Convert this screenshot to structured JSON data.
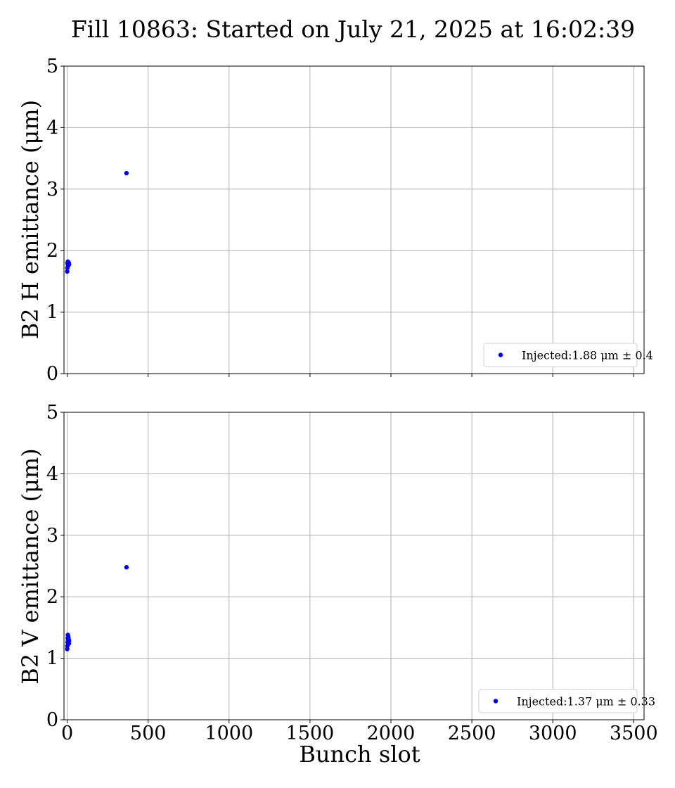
{
  "title": "Fill 10863: Started on July 21, 2025 at 16:02:39",
  "colors": {
    "marker": "#0000ee",
    "grid": "#b0b0b0"
  },
  "chart_data": [
    {
      "type": "scatter",
      "ylabel": "B2 H emittance (μm)",
      "xlabel": "",
      "xlim": [
        -20,
        3564
      ],
      "ylim": [
        0,
        5
      ],
      "xticks": [
        0,
        500,
        1000,
        1500,
        2000,
        2500,
        3000,
        3500
      ],
      "yticks": [
        0,
        1,
        2,
        3,
        4,
        5
      ],
      "show_xtick_labels": false,
      "grid": true,
      "legend_position": "bottom-right",
      "series": [
        {
          "name": "Injected:1.88 μm ± 0.4",
          "points": [
            {
              "x": 0,
              "y": 1.66
            },
            {
              "x": 1,
              "y": 1.72
            },
            {
              "x": 2,
              "y": 1.79
            },
            {
              "x": 3,
              "y": 1.8
            },
            {
              "x": 4,
              "y": 1.82
            },
            {
              "x": 5,
              "y": 1.78
            },
            {
              "x": 6,
              "y": 1.76
            },
            {
              "x": 7,
              "y": 1.81
            },
            {
              "x": 8,
              "y": 1.79
            },
            {
              "x": 9,
              "y": 1.8
            },
            {
              "x": 10,
              "y": 1.77
            },
            {
              "x": 11,
              "y": 1.78
            },
            {
              "x": 366,
              "y": 3.26
            }
          ]
        }
      ]
    },
    {
      "type": "scatter",
      "ylabel": "B2 V emittance (μm)",
      "xlabel": "Bunch slot",
      "xlim": [
        -20,
        3564
      ],
      "ylim": [
        0,
        5
      ],
      "xticks": [
        0,
        500,
        1000,
        1500,
        2000,
        2500,
        3000,
        3500
      ],
      "yticks": [
        0,
        1,
        2,
        3,
        4,
        5
      ],
      "show_xtick_labels": true,
      "grid": true,
      "legend_position": "bottom-right",
      "series": [
        {
          "name": "Injected:1.37 μm ± 0.33",
          "points": [
            {
              "x": 0,
              "y": 1.15
            },
            {
              "x": 1,
              "y": 1.2
            },
            {
              "x": 2,
              "y": 1.26
            },
            {
              "x": 3,
              "y": 1.33
            },
            {
              "x": 4,
              "y": 1.38
            },
            {
              "x": 5,
              "y": 1.3
            },
            {
              "x": 6,
              "y": 1.27
            },
            {
              "x": 7,
              "y": 1.35
            },
            {
              "x": 8,
              "y": 1.29
            },
            {
              "x": 9,
              "y": 1.31
            },
            {
              "x": 10,
              "y": 1.24
            },
            {
              "x": 11,
              "y": 1.28
            },
            {
              "x": 366,
              "y": 2.48
            }
          ]
        }
      ]
    }
  ]
}
